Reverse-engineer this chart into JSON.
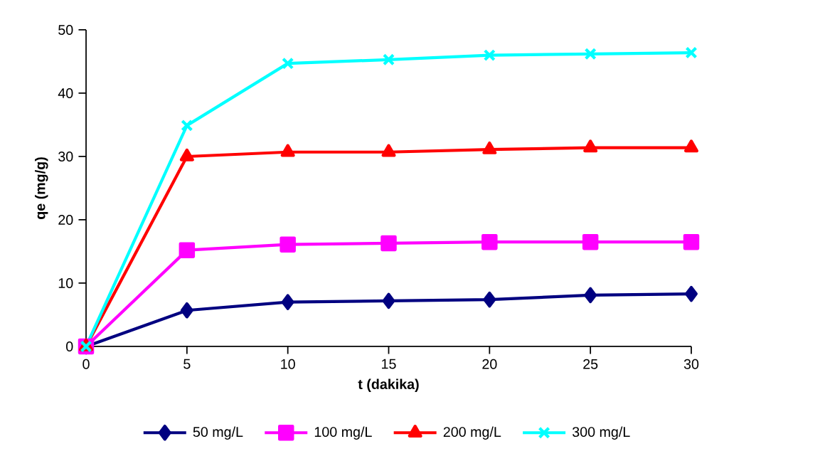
{
  "chart_data": {
    "type": "line",
    "xlabel": "t (dakika)",
    "ylabel": "qe (mg/g)",
    "x": [
      0,
      5,
      10,
      15,
      20,
      25,
      30
    ],
    "series": [
      {
        "name": "50 mg/L",
        "color": "#000080",
        "marker": "diamond",
        "values": [
          0,
          5.7,
          7.0,
          7.2,
          7.4,
          8.1,
          8.3
        ]
      },
      {
        "name": "100 mg/L",
        "color": "#ff00ff",
        "marker": "square",
        "values": [
          0,
          15.2,
          16.1,
          16.3,
          16.5,
          16.5,
          16.5
        ]
      },
      {
        "name": "200 mg/L",
        "color": "#ff0000",
        "marker": "triangle",
        "values": [
          0,
          30.0,
          30.7,
          30.7,
          31.1,
          31.4,
          31.4
        ]
      },
      {
        "name": "300 mg/L",
        "color": "#00ffff",
        "marker": "cross",
        "values": [
          0,
          34.9,
          44.7,
          45.3,
          46.0,
          46.2,
          46.4
        ]
      }
    ],
    "xlim": [
      0,
      30
    ],
    "xticks": [
      0,
      5,
      10,
      15,
      20,
      25,
      30
    ],
    "ylim": [
      0,
      50
    ],
    "yticks": [
      0,
      10,
      20,
      30,
      40,
      50
    ],
    "grid": false,
    "legend": "bottom"
  }
}
